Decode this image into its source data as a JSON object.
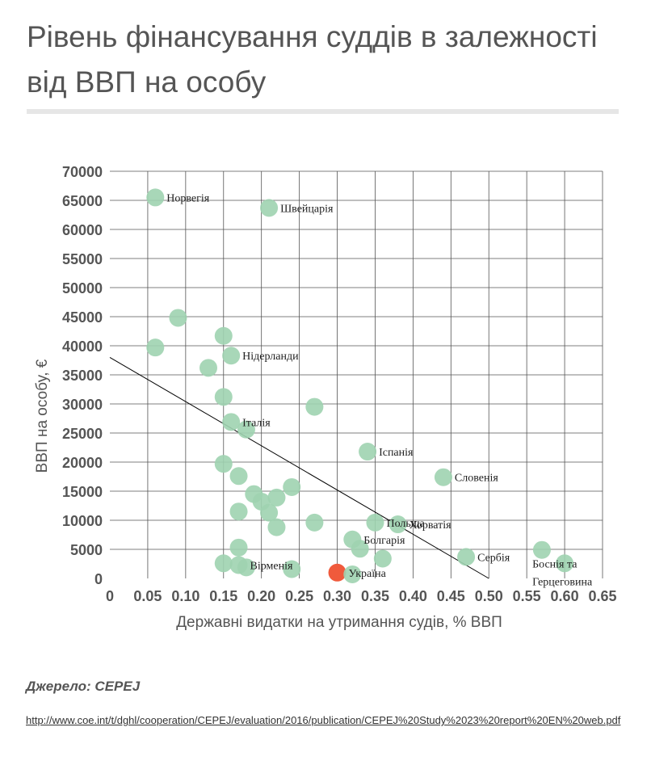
{
  "title": "Рівень фінансування суддів в залежності від ВВП на особу",
  "source_label": "Джерело: CEPEJ",
  "source_url": "http://www.coe.int/t/dghl/cooperation/CEPEJ/evaluation/2016/publication/CEPEJ%20Study%2023%20report%20EN%20web.pdf",
  "colors": {
    "point": "#9fd3b0",
    "highlight": "#f05a3c",
    "grid": "#555555",
    "trend": "#000000",
    "text": "#555555"
  },
  "chart_data": {
    "type": "scatter",
    "xlabel": "Державні видатки на утримання судів, % ВВП",
    "ylabel": "ВВП на особу, €",
    "xlim": [
      0,
      0.65
    ],
    "ylim": [
      0,
      70000
    ],
    "x_ticks": [
      "0",
      "0.05",
      "0.10",
      "0.15",
      "0.20",
      "0.25",
      "0.30",
      "0.35",
      "0.40",
      "0.45",
      "0.50",
      "0.55",
      "0.60",
      "0.65"
    ],
    "y_ticks": [
      "0",
      "5000",
      "10000",
      "15000",
      "20000",
      "25000",
      "30000",
      "35000",
      "40000",
      "45000",
      "50000",
      "55000",
      "60000",
      "65000",
      "70000"
    ],
    "grid": true,
    "trendline": {
      "x": [
        0,
        0.5
      ],
      "y": [
        38000,
        0
      ]
    },
    "points": [
      {
        "x": 0.06,
        "y": 65500,
        "label": "Норвегія"
      },
      {
        "x": 0.21,
        "y": 63700,
        "label": "Швейцарія"
      },
      {
        "x": 0.09,
        "y": 44800,
        "label": ""
      },
      {
        "x": 0.15,
        "y": 41700,
        "label": ""
      },
      {
        "x": 0.06,
        "y": 39700,
        "label": ""
      },
      {
        "x": 0.16,
        "y": 38300,
        "label": "Нідерланди"
      },
      {
        "x": 0.13,
        "y": 36200,
        "label": ""
      },
      {
        "x": 0.15,
        "y": 31200,
        "label": ""
      },
      {
        "x": 0.27,
        "y": 29500,
        "label": ""
      },
      {
        "x": 0.16,
        "y": 26900,
        "label": "Італія"
      },
      {
        "x": 0.18,
        "y": 25600,
        "label": ""
      },
      {
        "x": 0.34,
        "y": 21800,
        "label": "Іспанія"
      },
      {
        "x": 0.15,
        "y": 19700,
        "label": ""
      },
      {
        "x": 0.44,
        "y": 17400,
        "label": "Словенія"
      },
      {
        "x": 0.17,
        "y": 17600,
        "label": ""
      },
      {
        "x": 0.24,
        "y": 15700,
        "label": ""
      },
      {
        "x": 0.19,
        "y": 14500,
        "label": ""
      },
      {
        "x": 0.22,
        "y": 13900,
        "label": ""
      },
      {
        "x": 0.2,
        "y": 13200,
        "label": ""
      },
      {
        "x": 0.17,
        "y": 11500,
        "label": ""
      },
      {
        "x": 0.21,
        "y": 11300,
        "label": ""
      },
      {
        "x": 0.35,
        "y": 9600,
        "label": "Польща"
      },
      {
        "x": 0.38,
        "y": 9300,
        "label": "Хорватія"
      },
      {
        "x": 0.27,
        "y": 9600,
        "label": ""
      },
      {
        "x": 0.22,
        "y": 8800,
        "label": ""
      },
      {
        "x": 0.32,
        "y": 6700,
        "label": "Болгарія"
      },
      {
        "x": 0.33,
        "y": 5100,
        "label": ""
      },
      {
        "x": 0.17,
        "y": 5300,
        "label": ""
      },
      {
        "x": 0.57,
        "y": 4900,
        "label": ""
      },
      {
        "x": 0.47,
        "y": 3700,
        "label": "Сербія"
      },
      {
        "x": 0.36,
        "y": 3400,
        "label": ""
      },
      {
        "x": 0.6,
        "y": 2600,
        "label": "Боснія та Герцеговина"
      },
      {
        "x": 0.15,
        "y": 2600,
        "label": ""
      },
      {
        "x": 0.17,
        "y": 2300,
        "label": "Вірменія"
      },
      {
        "x": 0.18,
        "y": 1900,
        "label": ""
      },
      {
        "x": 0.24,
        "y": 1600,
        "label": ""
      },
      {
        "x": 0.3,
        "y": 1000,
        "label": "Україна",
        "highlight": true
      },
      {
        "x": 0.32,
        "y": 700,
        "label": ""
      }
    ]
  }
}
